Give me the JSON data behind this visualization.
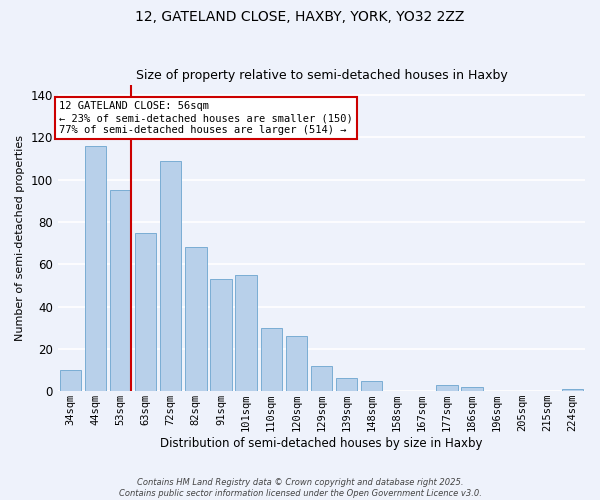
{
  "title": "12, GATELAND CLOSE, HAXBY, YORK, YO32 2ZZ",
  "subtitle": "Size of property relative to semi-detached houses in Haxby",
  "xlabel": "Distribution of semi-detached houses by size in Haxby",
  "ylabel": "Number of semi-detached properties",
  "categories": [
    "34sqm",
    "44sqm",
    "53sqm",
    "63sqm",
    "72sqm",
    "82sqm",
    "91sqm",
    "101sqm",
    "110sqm",
    "120sqm",
    "129sqm",
    "139sqm",
    "148sqm",
    "158sqm",
    "167sqm",
    "177sqm",
    "186sqm",
    "196sqm",
    "205sqm",
    "215sqm",
    "224sqm"
  ],
  "values": [
    10,
    116,
    95,
    75,
    109,
    68,
    53,
    55,
    30,
    26,
    12,
    6,
    5,
    0,
    0,
    3,
    2,
    0,
    0,
    0,
    1
  ],
  "bar_color": "#b8d0ea",
  "bar_edge_color": "#7aadd4",
  "vline_index": 2,
  "vline_color": "#cc0000",
  "annotation_text": "12 GATELAND CLOSE: 56sqm\n← 23% of semi-detached houses are smaller (150)\n77% of semi-detached houses are larger (514) →",
  "annotation_box_facecolor": "#ffffff",
  "annotation_box_edgecolor": "#cc0000",
  "ylim": [
    0,
    145
  ],
  "yticks": [
    0,
    20,
    40,
    60,
    80,
    100,
    120,
    140
  ],
  "background_color": "#eef2fb",
  "grid_color": "#ffffff",
  "footer_line1": "Contains HM Land Registry data © Crown copyright and database right 2025.",
  "footer_line2": "Contains public sector information licensed under the Open Government Licence v3.0."
}
